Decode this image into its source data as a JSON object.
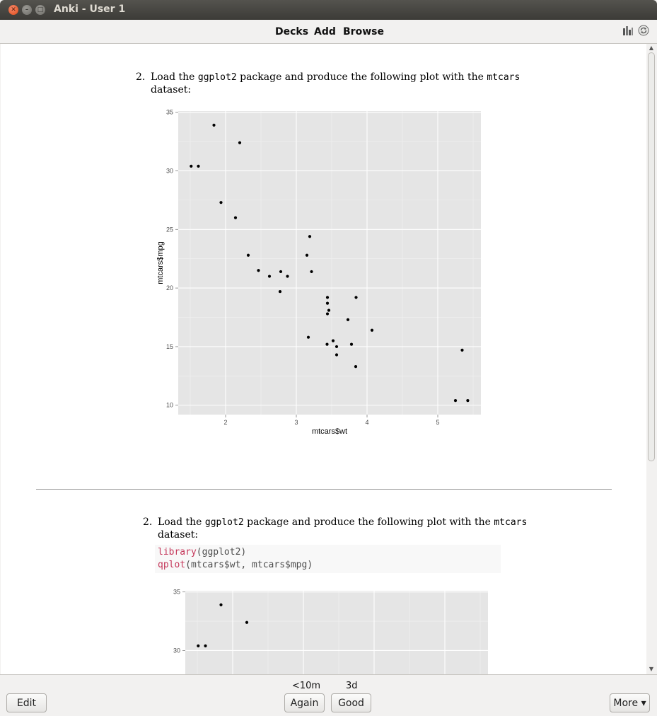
{
  "window": {
    "title": "Anki - User 1",
    "close_glyph": "✕",
    "min_glyph": "–",
    "max_glyph": "□"
  },
  "toolbar": {
    "decks": "Decks",
    "add": "Add",
    "browse": "Browse",
    "stats_icon": "stats-icon",
    "sync_icon": "sync-icon"
  },
  "card": {
    "question": {
      "number": "2.",
      "line1_a": "Load the ",
      "line1_code1": "ggplot2",
      "line1_b": " package and produce the following plot with the ",
      "line1_code2": "mtcars",
      "line2": "dataset:"
    },
    "answer": {
      "number": "2.",
      "line1_a": "Load the ",
      "line1_code1": "ggplot2",
      "line1_b": " package and produce the following plot with the ",
      "line1_code2": "mtcars",
      "line2": "dataset:",
      "code_line1_kw": "library",
      "code_line1_rest": "(ggplot2)",
      "code_line2_kw": "qplot",
      "code_line2_rest": "(mtcars$wt, mtcars$mpg)"
    }
  },
  "chart_data": [
    {
      "type": "scatter",
      "title": "",
      "xlabel": "mtcars$wt",
      "ylabel": "mtcars$mpg",
      "xlim": [
        1.33,
        5.61
      ],
      "ylim": [
        9.2,
        35.1
      ],
      "xticks": [
        2,
        3,
        4,
        5
      ],
      "yticks": [
        10,
        15,
        20,
        25,
        30,
        35
      ],
      "grid": true,
      "points": [
        [
          2.62,
          21.0
        ],
        [
          2.875,
          21.0
        ],
        [
          2.32,
          22.8
        ],
        [
          3.215,
          21.4
        ],
        [
          3.44,
          18.7
        ],
        [
          3.46,
          18.1
        ],
        [
          3.57,
          14.3
        ],
        [
          3.19,
          24.4
        ],
        [
          3.15,
          22.8
        ],
        [
          3.44,
          19.2
        ],
        [
          3.44,
          17.8
        ],
        [
          4.07,
          16.4
        ],
        [
          3.73,
          17.3
        ],
        [
          3.78,
          15.2
        ],
        [
          5.25,
          10.4
        ],
        [
          5.424,
          10.4
        ],
        [
          5.345,
          14.7
        ],
        [
          2.2,
          32.4
        ],
        [
          1.615,
          30.4
        ],
        [
          1.835,
          33.9
        ],
        [
          2.465,
          21.5
        ],
        [
          3.52,
          15.5
        ],
        [
          3.435,
          15.2
        ],
        [
          3.84,
          13.3
        ],
        [
          3.845,
          19.2
        ],
        [
          1.935,
          27.3
        ],
        [
          2.14,
          26.0
        ],
        [
          1.513,
          30.4
        ],
        [
          3.17,
          15.8
        ],
        [
          2.77,
          19.7
        ],
        [
          3.57,
          15.0
        ],
        [
          2.78,
          21.4
        ]
      ]
    },
    {
      "type": "scatter",
      "title": "",
      "xlabel": "",
      "ylabel": "",
      "xlim": [
        1.33,
        5.61
      ],
      "ylim": [
        9.2,
        35.1
      ],
      "yticks": [
        30,
        35
      ],
      "grid": true,
      "points": [
        [
          1.615,
          30.4
        ],
        [
          1.835,
          33.9
        ],
        [
          2.2,
          32.4
        ],
        [
          1.513,
          30.4
        ]
      ]
    }
  ],
  "bottom": {
    "edit": "Edit",
    "again_interval": "<10m",
    "good_interval": "3d",
    "again": "Again",
    "good": "Good",
    "more": "More ▾"
  }
}
